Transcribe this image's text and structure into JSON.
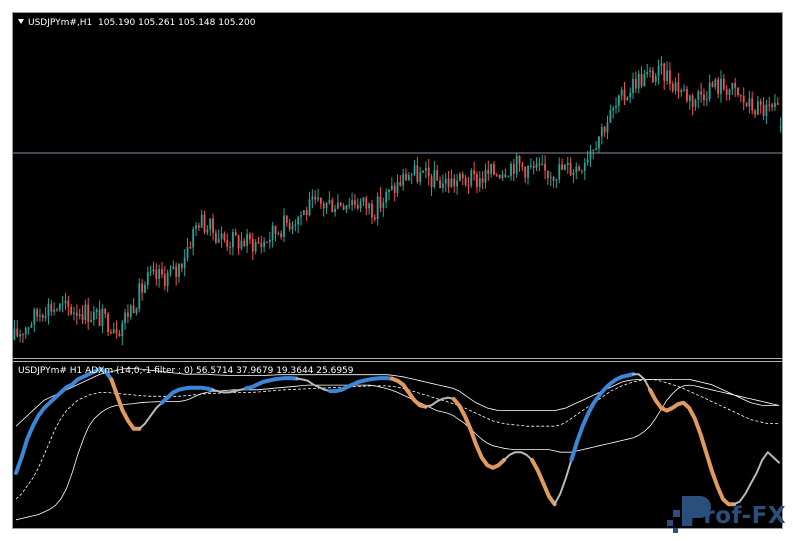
{
  "main_pane": {
    "symbol_label": "USDJPYm#,H1",
    "ohlc_label": "105.190 105.261 105.148 105.200",
    "price_line_value": 105.0
  },
  "indicator_pane": {
    "label": "USDJPYm# H1 ADXm (14,0,-1 filter : 0) 56.5714 37.9679 19.3644 25.6959"
  },
  "logo": {
    "text": "Prof-FX"
  },
  "colors": {
    "background": "#000000",
    "bull_candle": "#26a69a",
    "bear_candle": "#ef5350",
    "adx_up": "#3b86d6",
    "adx_down": "#e09a5e",
    "adx_neutral": "#b9b9b9",
    "band": "#ffffff",
    "frame": "#9a9a9a",
    "logo": "#2a4f7c"
  },
  "chart_data": [
    {
      "type": "candlestick",
      "title": "USDJPYm#,H1",
      "trend_anchors": [
        [
          0,
          103.6
        ],
        [
          12,
          103.85
        ],
        [
          25,
          103.82
        ],
        [
          38,
          103.7
        ],
        [
          48,
          104.05
        ],
        [
          58,
          104.1
        ],
        [
          66,
          104.5
        ],
        [
          75,
          104.35
        ],
        [
          88,
          104.32
        ],
        [
          95,
          104.45
        ],
        [
          106,
          104.6
        ],
        [
          120,
          104.65
        ],
        [
          128,
          104.58
        ],
        [
          140,
          104.85
        ],
        [
          152,
          104.78
        ],
        [
          164,
          104.8
        ],
        [
          177,
          104.92
        ],
        [
          187,
          104.85
        ],
        [
          200,
          104.9
        ],
        [
          210,
          105.25
        ],
        [
          220,
          105.55
        ],
        [
          230,
          105.6
        ],
        [
          240,
          105.4
        ],
        [
          246,
          105.5
        ],
        [
          252,
          105.5
        ],
        [
          260,
          105.35
        ],
        [
          270,
          105.3
        ]
      ],
      "last_ohlc": [
        105.19,
        105.261,
        105.148,
        105.2
      ],
      "ylim": [
        103.5,
        105.9
      ]
    },
    {
      "type": "line",
      "title": "USDJPYm# H1 ADXm (14,0,-1 filter : 0)",
      "adx_values": [
        20,
        26,
        33,
        38,
        42,
        45,
        47,
        49,
        51,
        53,
        54,
        56,
        57,
        58,
        59,
        60,
        59,
        56,
        50,
        44,
        40,
        37,
        37,
        39,
        42,
        45,
        47,
        49,
        51,
        52,
        52.5,
        52.8,
        52.8,
        52.8,
        52.5,
        52,
        51.5,
        51,
        51,
        51.5,
        52,
        52.5,
        53,
        54,
        55,
        55.5,
        56,
        56.3,
        56.5,
        56.5,
        56.3,
        56,
        55.5,
        54,
        53,
        52,
        51.5,
        51.5,
        52,
        53,
        54,
        55,
        55.5,
        56,
        56.3,
        56.5,
        56.5,
        56.3,
        55.5,
        54,
        51,
        48,
        46,
        45.5,
        46,
        47.5,
        48.5,
        49,
        48.5,
        46,
        42,
        37,
        31,
        26,
        23,
        22,
        23,
        25,
        27,
        28,
        28,
        27,
        25,
        21,
        16,
        11,
        8,
        12,
        18,
        25,
        32,
        38,
        43,
        47,
        50,
        52.5,
        54.5,
        56,
        57,
        57.5,
        58,
        58,
        56,
        52,
        48,
        45,
        44,
        45,
        46.5,
        47,
        45,
        41,
        35,
        28,
        21,
        15,
        10,
        8,
        8,
        9,
        12,
        16,
        20,
        25,
        28,
        26,
        24
      ],
      "adx_segments": [
        {
          "state": "up",
          "from": 0,
          "to": 17
        },
        {
          "state": "down",
          "from": 17,
          "to": 22
        },
        {
          "state": "neutral",
          "from": 22,
          "to": 26
        },
        {
          "state": "up",
          "from": 26,
          "to": 35
        },
        {
          "state": "neutral",
          "from": 35,
          "to": 41
        },
        {
          "state": "up",
          "from": 41,
          "to": 50
        },
        {
          "state": "neutral",
          "from": 50,
          "to": 56
        },
        {
          "state": "up",
          "from": 56,
          "to": 67
        },
        {
          "state": "down",
          "from": 67,
          "to": 73
        },
        {
          "state": "neutral",
          "from": 73,
          "to": 78
        },
        {
          "state": "down",
          "from": 78,
          "to": 87
        },
        {
          "state": "neutral",
          "from": 87,
          "to": 92
        },
        {
          "state": "down",
          "from": 92,
          "to": 96
        },
        {
          "state": "neutral",
          "from": 96,
          "to": 99
        },
        {
          "state": "up",
          "from": 99,
          "to": 110
        },
        {
          "state": "neutral",
          "from": 110,
          "to": 113
        },
        {
          "state": "down",
          "from": 113,
          "to": 128
        },
        {
          "state": "neutral",
          "from": 128,
          "to": 136
        }
      ],
      "upper_band": [
        38,
        40,
        42,
        44,
        46,
        48,
        49,
        50,
        51,
        52,
        53,
        54,
        55,
        56,
        57,
        58,
        58.5,
        59,
        59.5,
        60,
        60.2,
        60.2,
        60,
        59.8,
        59.5,
        59.3,
        59,
        58.8,
        58.5,
        58.3,
        58,
        58,
        58,
        58,
        58,
        57.8,
        57.7,
        57.6,
        57.5,
        57.5,
        57.5,
        57.5,
        57.5,
        57.5,
        57.5,
        57.6,
        57.7,
        57.8,
        57.8,
        57.8,
        57.8,
        57.8,
        57.8,
        57.8,
        57.8,
        57.8,
        57.8,
        57.8,
        57.8,
        57.8,
        57.8,
        57.8,
        57.8,
        57.8,
        57.8,
        57.8,
        57.8,
        57.6,
        57.3,
        57,
        56.5,
        56,
        55.5,
        55,
        54.5,
        54,
        53.5,
        53,
        52.5,
        51.5,
        50,
        48.5,
        47,
        46,
        45,
        44.5,
        44,
        44,
        44,
        44,
        44,
        44,
        44,
        44,
        44,
        44,
        44,
        44.5,
        45,
        46,
        47,
        48,
        49,
        50,
        51,
        52,
        53,
        54,
        55,
        55.5,
        55.8,
        56,
        56,
        56,
        56,
        56,
        56,
        56,
        56,
        56,
        56,
        55.5,
        55,
        54.5,
        54,
        53,
        52,
        51,
        50,
        49,
        48,
        47,
        46.5,
        46,
        46,
        46,
        46
      ],
      "mid_band": [
        10,
        12,
        15,
        18,
        22,
        27,
        32,
        37,
        41,
        44,
        46,
        48,
        49,
        50,
        50.5,
        51,
        51,
        50.8,
        50.6,
        50.4,
        50.2,
        50,
        49.8,
        49.6,
        49.5,
        49.5,
        49.5,
        49.5,
        49.5,
        49.5,
        49.7,
        49.9,
        50.1,
        50.3,
        50.5,
        50.6,
        50.7,
        50.8,
        50.9,
        51,
        51,
        51,
        51,
        51.1,
        51.3,
        51.5,
        51.7,
        51.9,
        52,
        52.1,
        52.2,
        52.3,
        52.4,
        52.5,
        52.6,
        52.7,
        52.8,
        52.9,
        53,
        53.1,
        53.2,
        53.3,
        53.4,
        53.5,
        53.5,
        53.5,
        53.5,
        53.3,
        53,
        52.5,
        52,
        51.3,
        50.6,
        50,
        49.3,
        48.6,
        48,
        47.3,
        46.6,
        45.8,
        45,
        44,
        43,
        42,
        41,
        40,
        39.5,
        39,
        38.7,
        38.5,
        38.3,
        38,
        38,
        38,
        38,
        38,
        38,
        38.5,
        39.5,
        41,
        42.5,
        44,
        45.5,
        47,
        48.5,
        50,
        51.5,
        52.5,
        53.5,
        54.3,
        55,
        55.5,
        55.8,
        56,
        55.8,
        55.3,
        54.7,
        54,
        53.3,
        52.5,
        51.5,
        50.5,
        49.5,
        48.5,
        47.5,
        46.5,
        45.5,
        44.5,
        43.5,
        42.5,
        41.5,
        40.5,
        40,
        39.5,
        39,
        39,
        39
      ],
      "lower_band": [
        2,
        2.5,
        3,
        3.5,
        4,
        5,
        6,
        7.5,
        10,
        14,
        20,
        27,
        33,
        38,
        41,
        43,
        44.5,
        45.5,
        46,
        46.3,
        46.5,
        46.7,
        47,
        47.2,
        47.3,
        47.4,
        47.5,
        47.5,
        47.5,
        47.5,
        47.8,
        48.5,
        49.5,
        50.5,
        51,
        51.3,
        51.5,
        51.7,
        51.9,
        52,
        52,
        52,
        52,
        52,
        52.2,
        52.4,
        52.6,
        52.8,
        53,
        53.2,
        53.4,
        53.6,
        53.8,
        53.8,
        53.8,
        53.8,
        53.8,
        53.8,
        53.8,
        53.8,
        53.8,
        53.8,
        53.8,
        53.8,
        53.5,
        53,
        52.5,
        51.8,
        51,
        50,
        49,
        48,
        47,
        46,
        45,
        44,
        43.5,
        43,
        42,
        40.5,
        39,
        37,
        35,
        33,
        31.5,
        30.5,
        30,
        29.5,
        29.2,
        29,
        29,
        29,
        29,
        29,
        29,
        29,
        28.5,
        28,
        28,
        28,
        28.5,
        29,
        29.5,
        30,
        30.5,
        31,
        31.5,
        32,
        32.5,
        33,
        33.5,
        34.5,
        36,
        38,
        41,
        44.5,
        48,
        50.5,
        52.5,
        53.5,
        53.8,
        53.5,
        53,
        52.5,
        52,
        51.5,
        51,
        50.5,
        50,
        49.5,
        49,
        48.5,
        48,
        47.5,
        47,
        46.5,
        46
      ],
      "ylim": [
        0,
        60
      ]
    }
  ]
}
